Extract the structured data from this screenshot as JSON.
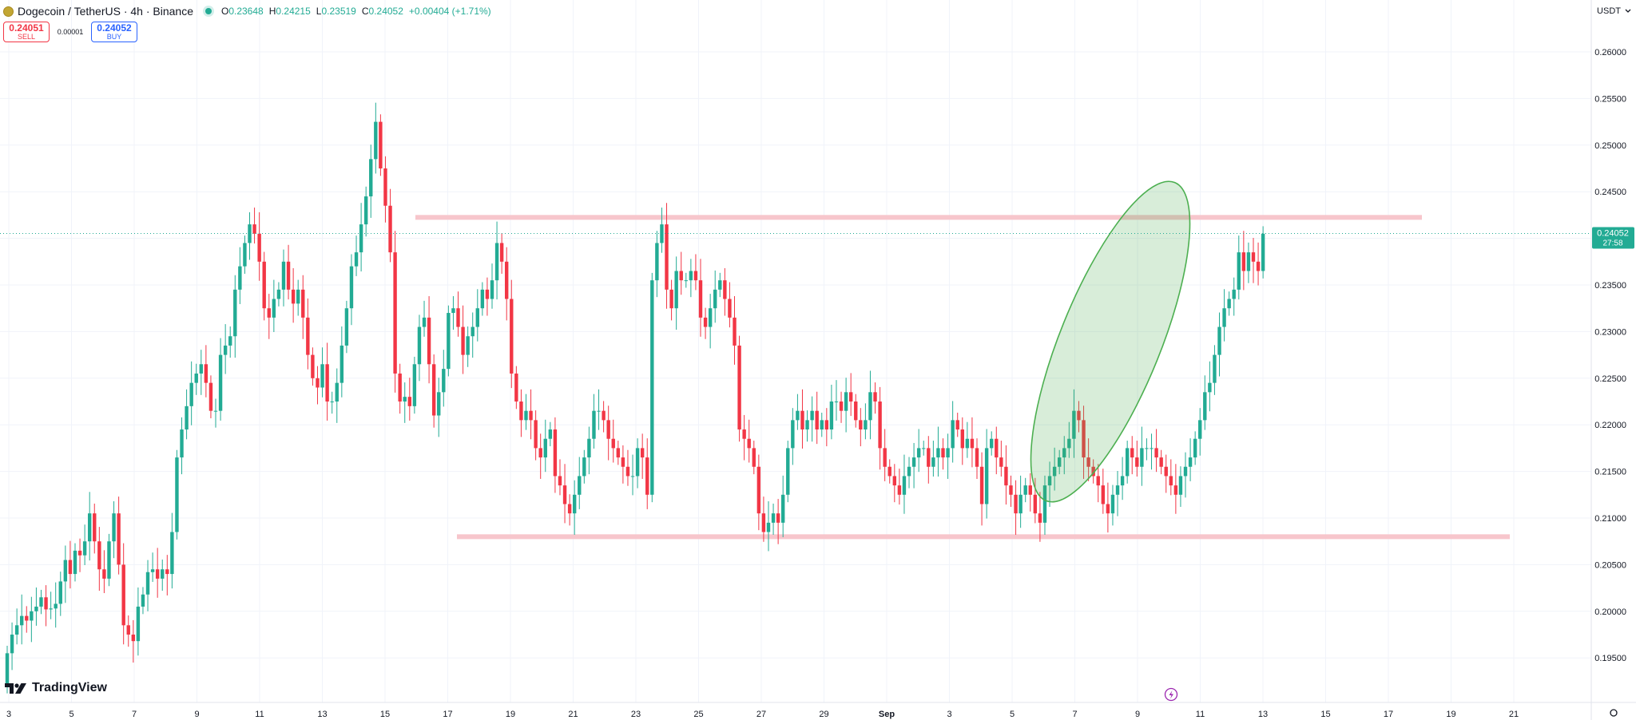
{
  "header": {
    "symbol_title": "Dogecoin / TetherUS · 4h · Binance",
    "ohlc": {
      "o_label": "O",
      "o": "0.23648",
      "h_label": "H",
      "h": "0.24215",
      "l_label": "L",
      "l": "0.23519",
      "c_label": "C",
      "c": "0.24052",
      "change": "+0.00404 (+1.71%)"
    },
    "sell": {
      "price": "0.24051",
      "label": "SELL"
    },
    "spread": "0.00001",
    "buy": {
      "price": "0.24052",
      "label": "BUY"
    },
    "currency": "USDT",
    "currency_icon": "chevron-down-icon"
  },
  "branding": {
    "text": "TradingView",
    "icon": "tv-logo-icon"
  },
  "colors": {
    "up": "#22ab94",
    "down": "#f23645",
    "level": "#f7c6cc",
    "ellipse": "#4caf50",
    "grid": "#f0f3fa"
  },
  "price_label": {
    "price": "0.24052",
    "countdown": "27:58"
  },
  "chart_data": {
    "type": "candlestick",
    "interval": "4h",
    "x_axis_labels": [
      "3",
      "5",
      "7",
      "9",
      "11",
      "13",
      "15",
      "17",
      "19",
      "21",
      "23",
      "25",
      "27",
      "29",
      "Sep",
      "3",
      "5",
      "7",
      "9",
      "11",
      "13",
      "15",
      "17",
      "19",
      "21"
    ],
    "y_axis_labels": [
      "0.26000",
      "0.25500",
      "0.25000",
      "0.24500",
      "0.24000",
      "0.23500",
      "0.23000",
      "0.22500",
      "0.22000",
      "0.21500",
      "0.21000",
      "0.20500",
      "0.20000",
      "0.19500"
    ],
    "ylim": [
      0.1905,
      0.2665
    ],
    "grid": true,
    "candles_start_index": 0,
    "close": [
      0.1955,
      0.1975,
      0.1985,
      0.1995,
      0.199,
      0.2,
      0.2005,
      0.2015,
      0.2002,
      0.2003,
      0.2008,
      0.2032,
      0.2055,
      0.204,
      0.2065,
      0.206,
      0.2075,
      0.2105,
      0.2075,
      0.2045,
      0.2035,
      0.2075,
      0.2105,
      0.205,
      0.1985,
      0.1975,
      0.1968,
      0.2005,
      0.2018,
      0.2042,
      0.2045,
      0.2035,
      0.2045,
      0.204,
      0.2085,
      0.2165,
      0.2195,
      0.222,
      0.2245,
      0.2255,
      0.2265,
      0.2245,
      0.2215,
      0.2215,
      0.2275,
      0.2285,
      0.2295,
      0.2345,
      0.237,
      0.2395,
      0.2415,
      0.2405,
      0.2375,
      0.2325,
      0.2315,
      0.2335,
      0.2345,
      0.2375,
      0.2345,
      0.233,
      0.2345,
      0.2315,
      0.2275,
      0.225,
      0.224,
      0.2265,
      0.2225,
      0.2225,
      0.2245,
      0.2285,
      0.2325,
      0.237,
      0.2385,
      0.2415,
      0.2445,
      0.2485,
      0.2525,
      0.2475,
      0.2435,
      0.2385,
      0.2255,
      0.2225,
      0.223,
      0.222,
      0.2265,
      0.2305,
      0.2315,
      0.2265,
      0.221,
      0.2235,
      0.226,
      0.232,
      0.2325,
      0.2305,
      0.2275,
      0.2295,
      0.2305,
      0.2325,
      0.2345,
      0.2335,
      0.2355,
      0.2395,
      0.2375,
      0.2335,
      0.2255,
      0.2225,
      0.2205,
      0.2215,
      0.2205,
      0.2175,
      0.2165,
      0.2185,
      0.2195,
      0.2145,
      0.2135,
      0.2115,
      0.2105,
      0.2125,
      0.2145,
      0.2165,
      0.2185,
      0.2215,
      0.2215,
      0.2205,
      0.2185,
      0.2175,
      0.2165,
      0.2155,
      0.2145,
      0.2145,
      0.2175,
      0.2165,
      0.2125,
      0.2355,
      0.2395,
      0.2415,
      0.2345,
      0.2325,
      0.2365,
      0.2355,
      0.2355,
      0.2365,
      0.2355,
      0.2315,
      0.2305,
      0.2325,
      0.2345,
      0.2355,
      0.2335,
      0.2315,
      0.2285,
      0.2195,
      0.2185,
      0.2175,
      0.2155,
      0.2105,
      0.2085,
      0.2095,
      0.2105,
      0.2095,
      0.2125,
      0.2175,
      0.2205,
      0.2215,
      0.2195,
      0.2205,
      0.2215,
      0.2195,
      0.2205,
      0.2195,
      0.2225,
      0.2225,
      0.2215,
      0.2235,
      0.2225,
      0.2205,
      0.2195,
      0.2205,
      0.2235,
      0.2225,
      0.2175,
      0.2155,
      0.2145,
      0.2135,
      0.2125,
      0.2145,
      0.2155,
      0.2165,
      0.2175,
      0.2175,
      0.2155,
      0.2165,
      0.2175,
      0.2165,
      0.2175,
      0.2205,
      0.2195,
      0.2175,
      0.2185,
      0.2175,
      0.2155,
      0.2115,
      0.2175,
      0.2185,
      0.2165,
      0.2155,
      0.2135,
      0.2125,
      0.2105,
      0.2125,
      0.2135,
      0.2125,
      0.2105,
      0.2095,
      0.2135,
      0.2145,
      0.2155,
      0.2165,
      0.2175,
      0.2185,
      0.2215,
      0.2205,
      0.2165,
      0.2155,
      0.2145,
      0.2135,
      0.2115,
      0.2105,
      0.2125,
      0.2135,
      0.2145,
      0.2175,
      0.2165,
      0.2155,
      0.2175,
      0.2175,
      0.2175,
      0.2165,
      0.2155,
      0.2145,
      0.2135,
      0.2125,
      0.2145,
      0.2155,
      0.2165,
      0.2185,
      0.2205,
      0.2235,
      0.2245,
      0.2275,
      0.2305,
      0.2325,
      0.2335,
      0.2345,
      0.2385,
      0.2365,
      0.2385,
      0.2375,
      0.2365,
      0.2405
    ],
    "annotations": [
      {
        "type": "horizontal-level",
        "price": 0.24225,
        "from_label": "16",
        "to_label": "17"
      },
      {
        "type": "horizontal-level",
        "price": 0.208,
        "from_label": "17",
        "to_label": "20"
      },
      {
        "type": "ellipse-highlight",
        "region": "recent breakout"
      }
    ],
    "last_price": 0.24052
  }
}
